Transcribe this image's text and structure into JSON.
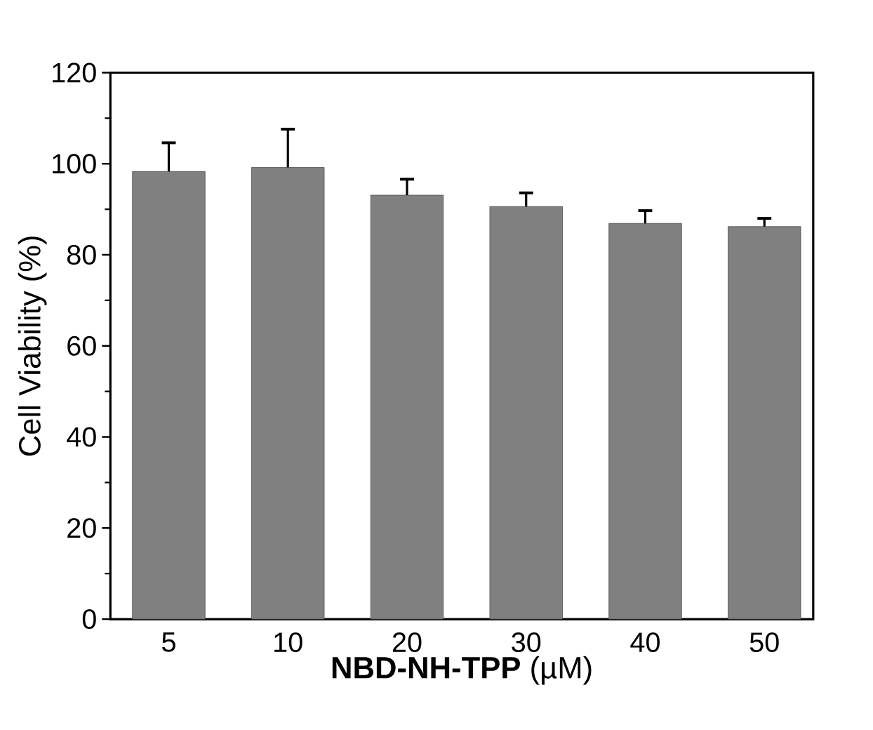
{
  "chart_data": {
    "type": "bar",
    "xlabel": "**NBD-NH-TPP** (µM)",
    "ylabel": "Cell Viability (%)",
    "categories": [
      "5",
      "10",
      "20",
      "30",
      "40",
      "50"
    ],
    "values": [
      98.3,
      99.2,
      93.1,
      90.6,
      86.9,
      86.2
    ],
    "errors": [
      6.3,
      8.4,
      3.5,
      3.0,
      2.8,
      1.8
    ],
    "color": "#808080",
    "ylim": [
      0,
      120
    ],
    "yticks": [
      0,
      20,
      40,
      60,
      80,
      100,
      120
    ],
    "grid": false
  }
}
